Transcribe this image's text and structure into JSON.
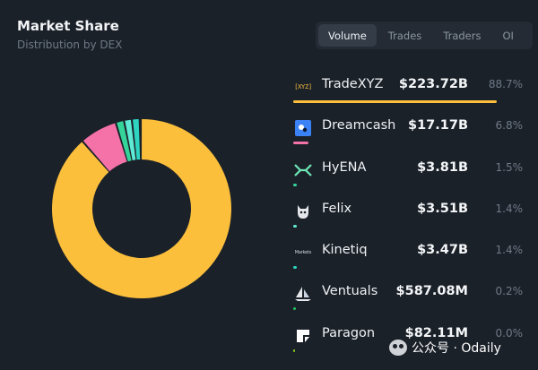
{
  "header": {
    "title": "Market Share",
    "subtitle": "Distribution by DEX"
  },
  "tabs": [
    {
      "label": "Volume",
      "active": true
    },
    {
      "label": "Trades",
      "active": false
    },
    {
      "label": "Traders",
      "active": false
    },
    {
      "label": "OI",
      "active": false
    }
  ],
  "dexes": [
    {
      "name": "TradeXYZ",
      "icon": "tradexyz-logo-icon",
      "icon_text": "[XYZ]",
      "value": "$223.72B",
      "share_label": "88.7%",
      "share": 88.7,
      "color": "#fbbf3c"
    },
    {
      "name": "Dreamcash",
      "icon": "dreamcash-logo-icon",
      "value": "$17.17B",
      "share_label": "6.8%",
      "share": 6.8,
      "color": "#f472a8"
    },
    {
      "name": "HyENA",
      "icon": "hyena-logo-icon",
      "value": "$3.81B",
      "share_label": "1.5%",
      "share": 1.5,
      "color": "#34d399"
    },
    {
      "name": "Felix",
      "icon": "felix-logo-icon",
      "value": "$3.51B",
      "share_label": "1.4%",
      "share": 1.4,
      "color": "#5eead4"
    },
    {
      "name": "Kinetiq",
      "icon": "kinetiq-logo-icon",
      "icon_text": "Markets",
      "value": "$3.47B",
      "share_label": "1.4%",
      "share": 1.4,
      "color": "#2dd4bf"
    },
    {
      "name": "Ventuals",
      "icon": "ventuals-logo-icon",
      "value": "$587.08M",
      "share_label": "0.2%",
      "share": 0.2,
      "color": "#22c55e"
    },
    {
      "name": "Paragon",
      "icon": "paragon-logo-icon",
      "value": "$82.11M",
      "share_label": "0.0%",
      "share": 0.0,
      "color": "#84cc16"
    }
  ],
  "watermark": {
    "text": "公众号 · Odaily"
  },
  "chart_data": {
    "type": "pie",
    "categories": [
      "TradeXYZ",
      "Dreamcash",
      "HyENA",
      "Felix",
      "Kinetiq",
      "Ventuals",
      "Paragon"
    ],
    "values": [
      88.7,
      6.8,
      1.5,
      1.4,
      1.4,
      0.2,
      0.0
    ],
    "colors": [
      "#fbbf3c",
      "#f472a8",
      "#34d399",
      "#5eead4",
      "#2dd4bf",
      "#22c55e",
      "#84cc16"
    ]
  }
}
